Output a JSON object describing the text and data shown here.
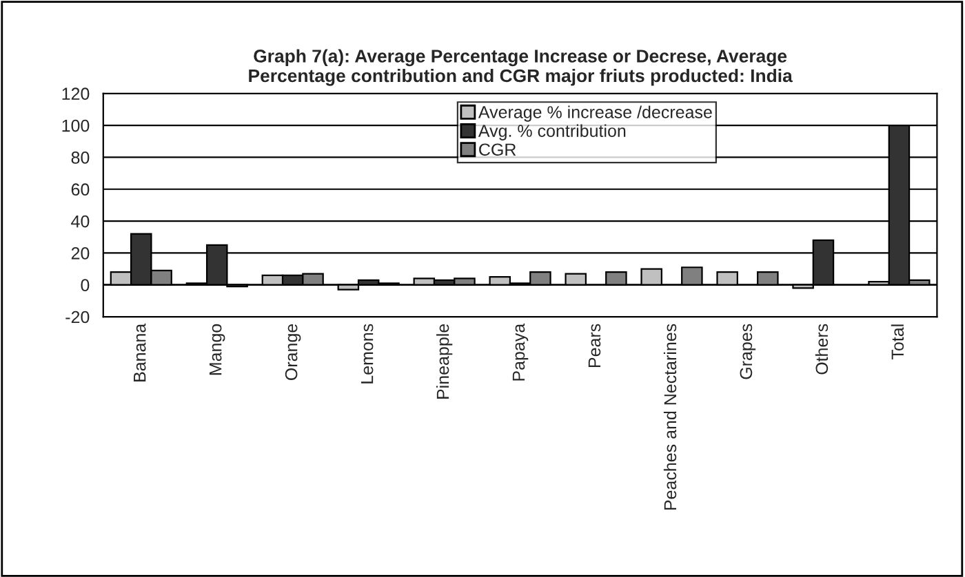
{
  "chart_data": {
    "type": "bar",
    "title": "Graph 7(a): Average Percentage Increase or Decrese, Average\nPercentage contribution and CGR major friuts producted: India",
    "categories": [
      "Banana",
      "Mango",
      "Orange",
      "Lemons",
      "Pineapple",
      "Papaya",
      "Pears",
      "Peaches and Nectarines",
      "Grapes",
      "Others",
      "Total"
    ],
    "series": [
      {
        "name": "Average % increase /decrease",
        "color": "#c0c0c0",
        "values": [
          8,
          1,
          6,
          -3,
          4,
          5,
          7,
          10,
          8,
          -2,
          2
        ]
      },
      {
        "name": "Avg. % contribution",
        "color": "#333333",
        "values": [
          32,
          25,
          6,
          3,
          3,
          1,
          null,
          null,
          null,
          28,
          100
        ]
      },
      {
        "name": "CGR",
        "color": "#808080",
        "values": [
          9,
          -1,
          7,
          1,
          4,
          8,
          8,
          11,
          8,
          null,
          3
        ]
      }
    ],
    "ylim": [
      -20,
      120
    ],
    "yticks": [
      -20,
      0,
      20,
      40,
      60,
      80,
      100,
      120
    ],
    "grid": "y",
    "legend": "top"
  }
}
